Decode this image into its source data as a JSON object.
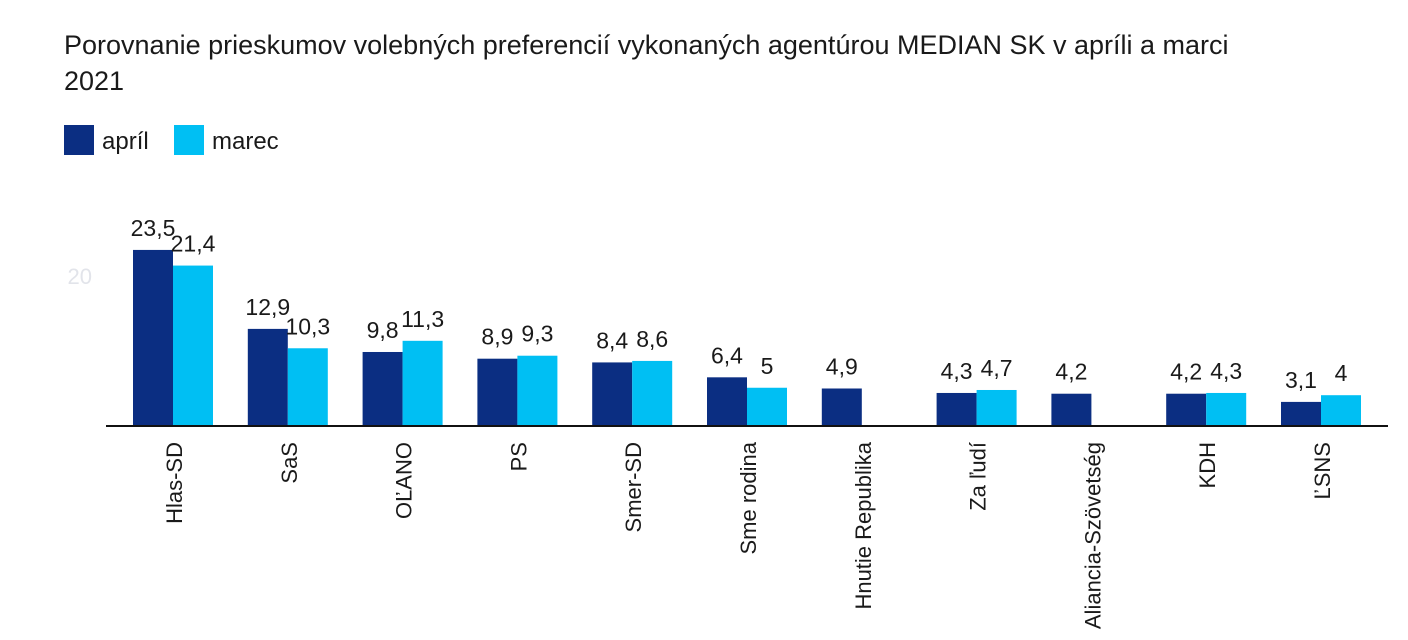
{
  "chart_data": {
    "type": "bar",
    "title": "Porovnanie prieskumov volebných preferencií vykonaných agentúrou MEDIAN SK v apríli a marci 2021",
    "title_lines": [
      "Porovnanie prieskumov volebných preferencií vykonaných agentúrou MEDIAN SK v apríli a marci",
      "2021"
    ],
    "categories": [
      "Hlas-SD",
      "SaS",
      "OĽANO",
      "PS",
      "Smer-SD",
      "Sme rodina",
      "Hnutie Republika",
      "Za ľudí",
      "Aliancia-Szövetség",
      "KDH",
      "ĽSNS"
    ],
    "series": [
      {
        "name": "apríl",
        "color": "#0b2e82",
        "values": [
          23.5,
          12.9,
          9.8,
          8.9,
          8.4,
          6.4,
          4.9,
          4.3,
          4.2,
          4.2,
          3.1
        ],
        "labels": [
          "23,5",
          "12,9",
          "9,8",
          "8,9",
          "8,4",
          "6,4",
          "4,9",
          "4,3",
          "4,2",
          "4,2",
          "3,1"
        ]
      },
      {
        "name": "marec",
        "color": "#00bff3",
        "values": [
          21.4,
          10.3,
          11.3,
          9.3,
          8.6,
          5,
          null,
          4.7,
          null,
          4.3,
          4
        ],
        "labels": [
          "21,4",
          "10,3",
          "11,3",
          "9,3",
          "8,6",
          "5",
          "",
          "4,7",
          "",
          "4,3",
          "4"
        ]
      }
    ],
    "y_ticks": [
      {
        "value": 20,
        "label": "20"
      }
    ],
    "ylim": [
      0,
      25
    ],
    "grid": false,
    "legend": "top-left",
    "xlabel": "",
    "ylabel": ""
  }
}
